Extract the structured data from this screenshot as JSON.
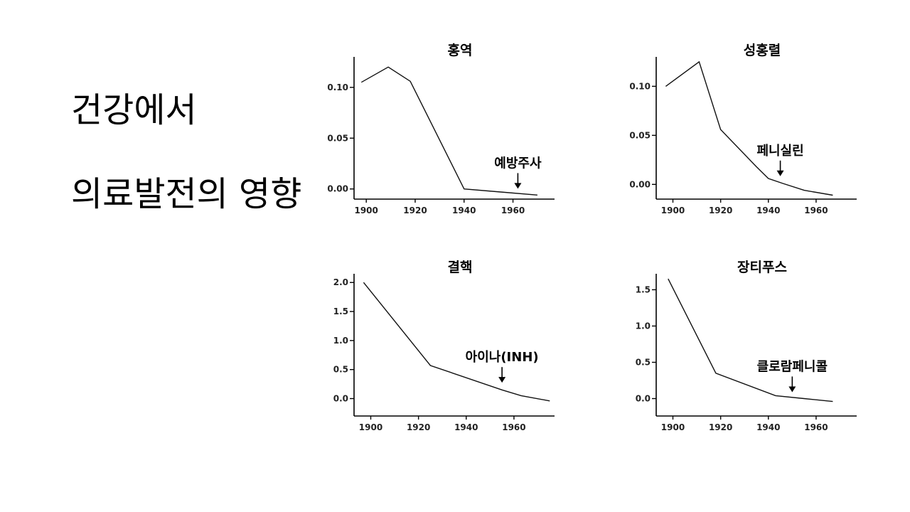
{
  "slide": {
    "title_line1": "건강에서",
    "title_line2": "의료발전의 영향"
  },
  "chart_data": [
    {
      "type": "line",
      "title": "홍역",
      "x": [
        1898,
        1909,
        1918,
        1940,
        1955,
        1970
      ],
      "y": [
        0.105,
        0.12,
        0.106,
        0.0,
        -0.003,
        -0.006
      ],
      "xlim": [
        1895,
        1977
      ],
      "ylim": [
        -0.01,
        0.13
      ],
      "xticks": [
        1900,
        1920,
        1940,
        1960
      ],
      "yticks": [
        0.0,
        0.05,
        0.1
      ],
      "ytick_labels": [
        "0.00",
        "0.05",
        "0.10"
      ],
      "annotation": {
        "text": "예방주사",
        "x": 1962,
        "y": -0.004
      }
    },
    {
      "type": "line",
      "title": "성홍렬",
      "x": [
        1897,
        1911,
        1920,
        1935,
        1940,
        1946,
        1955,
        1967
      ],
      "y": [
        0.1,
        0.125,
        0.056,
        0.018,
        0.006,
        0.001,
        -0.006,
        -0.011
      ],
      "xlim": [
        1893,
        1977
      ],
      "ylim": [
        -0.015,
        0.13
      ],
      "xticks": [
        1900,
        1920,
        1940,
        1960
      ],
      "yticks": [
        0.0,
        0.05,
        0.1
      ],
      "ytick_labels": [
        "0.00",
        "0.05",
        "0.10"
      ],
      "annotation": {
        "text": "페니실린",
        "x": 1945,
        "y": 0.004
      }
    },
    {
      "type": "line",
      "title": "결핵",
      "x": [
        1897,
        1925,
        1955,
        1963,
        1975
      ],
      "y": [
        2.0,
        0.57,
        0.15,
        0.05,
        -0.04
      ],
      "xlim": [
        1893,
        1977
      ],
      "ylim": [
        -0.3,
        2.15
      ],
      "xticks": [
        1900,
        1920,
        1940,
        1960
      ],
      "yticks": [
        0.0,
        0.5,
        1.0,
        1.5,
        2.0
      ],
      "ytick_labels": [
        "0.0",
        "0.5",
        "1.0",
        "1.5",
        "2.0"
      ],
      "annotation": {
        "text": "아이나(INH)",
        "x": 1955,
        "y": 0.2
      }
    },
    {
      "type": "line",
      "title": "장티푸스",
      "x": [
        1898,
        1918,
        1943,
        1955,
        1967
      ],
      "y": [
        1.65,
        0.35,
        0.04,
        0.0,
        -0.04
      ],
      "xlim": [
        1893,
        1977
      ],
      "ylim": [
        -0.24,
        1.72
      ],
      "xticks": [
        1900,
        1920,
        1940,
        1960
      ],
      "yticks": [
        0.0,
        0.5,
        1.0,
        1.5
      ],
      "ytick_labels": [
        "0.0",
        "0.5",
        "1.0",
        "1.5"
      ],
      "annotation": {
        "text": "클로람페니콜",
        "x": 1950,
        "y": 0.03
      }
    }
  ]
}
